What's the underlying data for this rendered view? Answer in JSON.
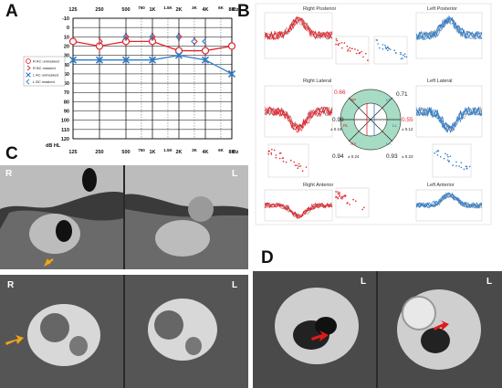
{
  "panels": {
    "a": "A",
    "b": "B",
    "c": "C",
    "d": "D"
  },
  "audiogram": {
    "freq_top": [
      "125",
      "250",
      "500",
      "750",
      "1K",
      "1.5K",
      "2K",
      "3K",
      "4K",
      "6K",
      "8K",
      "Hz"
    ],
    "freq_bottom": [
      "125",
      "250",
      "500",
      "750",
      "1K",
      "1.5K",
      "2K",
      "3K",
      "4K",
      "6K",
      "8K",
      "Hz"
    ],
    "db_ticks": [
      "-10",
      "0",
      "10",
      "20",
      "30",
      "40",
      "50",
      "60",
      "70",
      "80",
      "90",
      "100",
      "110",
      "120"
    ],
    "db_unit": "dB HL",
    "legend": [
      {
        "label": "R AC unmasked",
        "symbol": "circle",
        "color": "#e0262e"
      },
      {
        "label": "R BC masked",
        "symbol": "bracket-right",
        "color": "#e0262e"
      },
      {
        "label": "L AC unmasked",
        "symbol": "cross",
        "color": "#2f7cc8"
      },
      {
        "label": "L BC masked",
        "symbol": "bracket-left",
        "color": "#2f7cc8"
      }
    ]
  },
  "chart_data": {
    "type": "line",
    "x": [
      "125",
      "250",
      "500",
      "1K",
      "2K",
      "4K",
      "8K"
    ],
    "series": [
      {
        "name": "R AC unmasked",
        "values": [
          15,
          20,
          15,
          15,
          25,
          25,
          20
        ]
      },
      {
        "name": "L AC unmasked",
        "values": [
          35,
          35,
          35,
          35,
          30,
          35,
          50
        ]
      },
      {
        "name": "R BC masked",
        "x": [
          "250",
          "500",
          "1K",
          "2K",
          "3K"
        ],
        "values": [
          15,
          10,
          10,
          10,
          15
        ]
      },
      {
        "name": "L BC masked",
        "x": [
          "500",
          "1K",
          "2K",
          "3K",
          "4K"
        ],
        "values": [
          10,
          10,
          10,
          15,
          15
        ]
      }
    ],
    "ylabel": "dB HL",
    "ylim": [
      -10,
      120
    ],
    "y_inverted": true,
    "grid": true,
    "legend": "left"
  },
  "vemp": {
    "titles": {
      "rp": "Right Posterior",
      "lp": "Left Posterior",
      "rl": "Right Lateral",
      "ll": "Left Lateral",
      "ra": "Right Anterior",
      "la": "Left Anterior"
    },
    "wheel": {
      "rp_val": "0.66",
      "lp_val": "0.71",
      "ll_val": "0.55",
      "rl_val": "0.99",
      "rl_sd": "± 0.16",
      "ll_sd": "± 0.12",
      "ra_val": "0.94",
      "ra_sd": "± 0.24",
      "la_val": "0.93",
      "la_sd": "± 0.23",
      "lbl_rp": "RP",
      "lbl_lp": "LP",
      "lbl_rl": "RL",
      "lbl_ll": "LL",
      "lbl_ra": "RA",
      "lbl_la": "LA"
    }
  },
  "ct": {
    "c_top_r": "R",
    "c_top_l": "L",
    "c_bot_r": "R",
    "c_bot_l": "L",
    "d_l1": "L",
    "d_l2": "L"
  },
  "colors": {
    "right": "#e0262e",
    "left": "#2f7cc8",
    "arrow_yellow": "#f2a516",
    "arrow_red": "#e01a1a",
    "wheel_green": "#a6dcc4"
  }
}
